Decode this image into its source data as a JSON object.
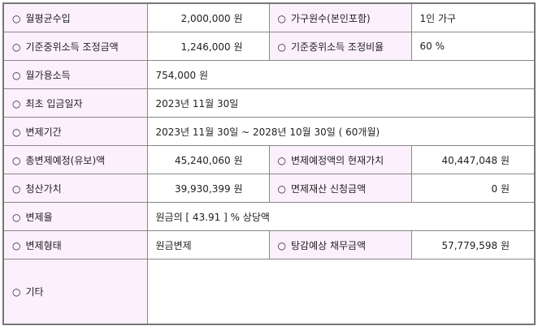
{
  "bullet": "○",
  "rows": [
    {
      "l1": "월평균수입",
      "v1": "2,000,000 원",
      "l2": "가구원수(본인포함)",
      "v2": "1인 가구"
    },
    {
      "l1": "기준중위소득 조정금액",
      "v1": "1,246,000 원",
      "l2": "기준중위소득 조정비율",
      "v2": "60 %"
    },
    {
      "l1": "월가용소득",
      "v1": "754,000 원"
    },
    {
      "l1": "최초 입금일자",
      "v1": "2023년 11월 30일"
    },
    {
      "l1": "변제기간",
      "v1": "2023년 11월 30일 ~ 2028년 10월 30일 ( 60개월)"
    },
    {
      "l1": "총변제예정(유보)액",
      "v1": "45,240,060 원",
      "l2": "변제예정액의 현재가치",
      "v2": "40,447,048 원"
    },
    {
      "l1": "청산가치",
      "v1": "39,930,399 원",
      "l2": "면제재산 신청금액",
      "v2": "0 원"
    },
    {
      "l1": "변제율",
      "v1": "원금의 [ 43.91 ] % 상당액"
    },
    {
      "l1": "변제형태",
      "v1": "원금변제",
      "l2": "탕감예상 채무금액",
      "v2": "57,779,598 원"
    },
    {
      "l1": "기타",
      "v1": ""
    }
  ]
}
